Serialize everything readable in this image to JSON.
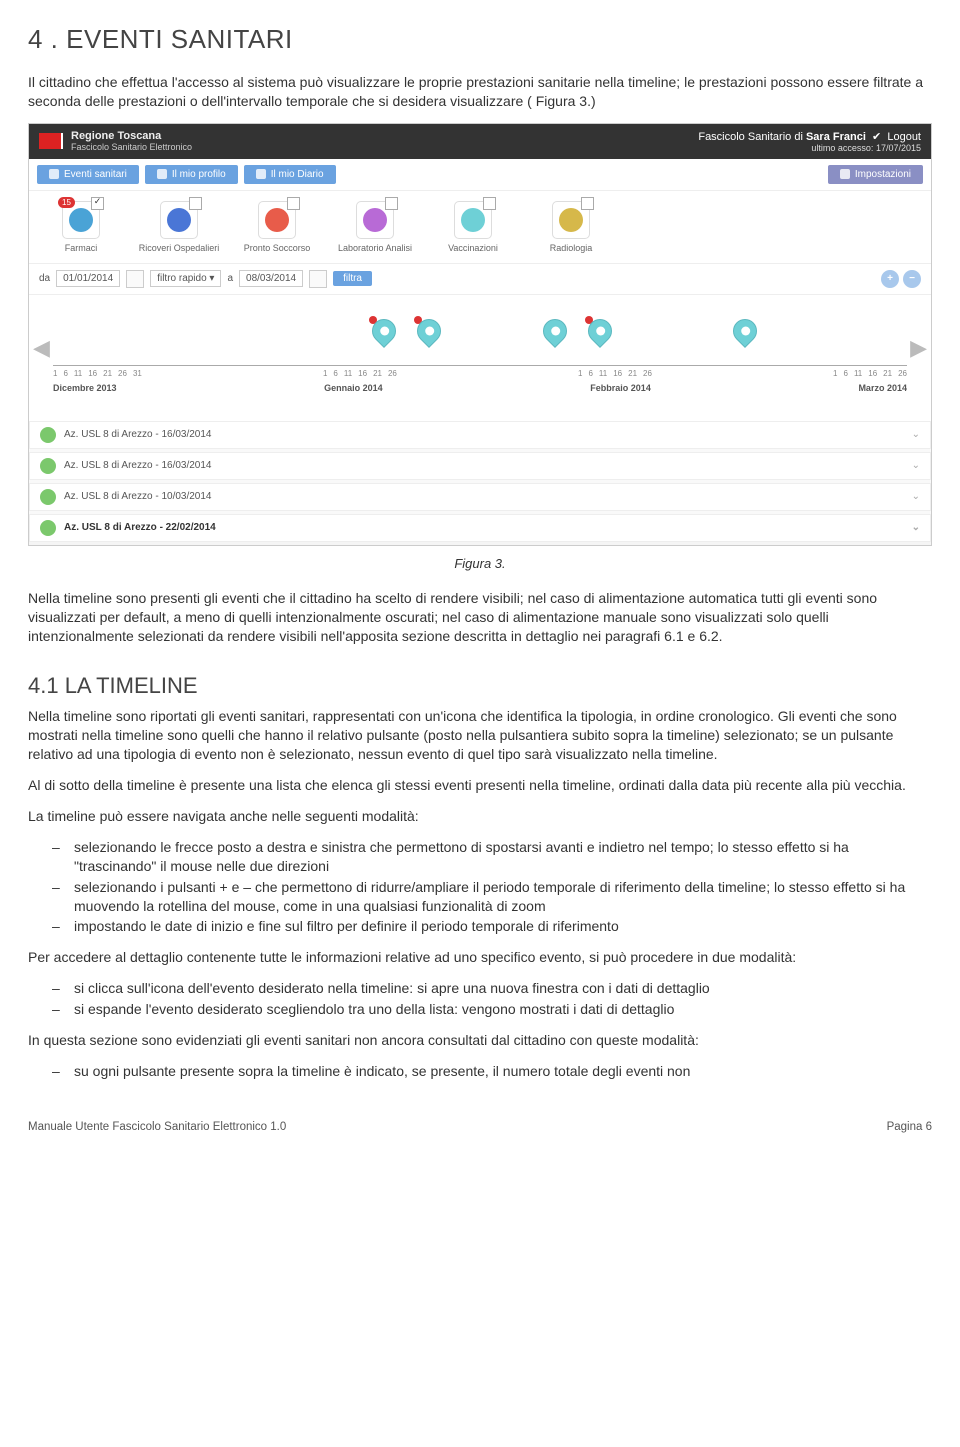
{
  "section": {
    "title": "4 . EVENTI SANITARI"
  },
  "intro": "Il cittadino che effettua l'accesso al sistema può visualizzare le proprie prestazioni sanitarie nella timeline; le prestazioni possono essere filtrate a seconda delle prestazioni o dell'intervallo temporale che si desidera visualizzare ( Figura 3.)",
  "screenshot": {
    "header": {
      "region": "Regione Toscana",
      "product": "Fascicolo Sanitario Elettronico",
      "fse_label": "Fascicolo Sanitario di",
      "user": "Sara Franci",
      "last_access_label": "ultimo accesso:",
      "last_access_date": "17/07/2015",
      "logout": "Logout"
    },
    "tabs": {
      "eventi": "Eventi sanitari",
      "profilo": "Il mio profilo",
      "diario": "Il mio Diario",
      "impostazioni": "Impostazioni"
    },
    "filters": [
      {
        "label": "Farmaci",
        "color": "#4aa3d6",
        "badge": "15",
        "checked": true
      },
      {
        "label": "Ricoveri Ospedalieri",
        "color": "#4a76d6",
        "checked": false
      },
      {
        "label": "Pronto Soccorso",
        "color": "#e85c4a",
        "checked": false
      },
      {
        "label": "Laboratorio Analisi",
        "color": "#b86ad6",
        "checked": false
      },
      {
        "label": "Vaccinazioni",
        "color": "#6ed0d6",
        "checked": false
      },
      {
        "label": "Radiologia",
        "color": "#d6b84a",
        "checked": false
      }
    ],
    "datebar": {
      "da": "da",
      "date_from": "01/01/2014",
      "filtro_rapido": "filtro rapido",
      "a": "a",
      "date_to": "08/03/2014",
      "filtra": "filtra"
    },
    "timeline": {
      "months": [
        "Dicembre 2013",
        "Gennaio 2014",
        "Febbraio 2014",
        "Marzo 2014"
      ],
      "ticks": [
        "1",
        "6",
        "11",
        "16",
        "21",
        "26",
        "31"
      ],
      "markers": [
        {
          "left_pct": 38,
          "new": true
        },
        {
          "left_pct": 43,
          "new": true
        },
        {
          "left_pct": 57,
          "new": false
        },
        {
          "left_pct": 62,
          "new": true
        },
        {
          "left_pct": 78,
          "new": false
        }
      ]
    },
    "events": [
      {
        "text": "Az. USL 8 di Arezzo - 16/03/2014",
        "bold": false
      },
      {
        "text": "Az. USL 8 di Arezzo - 16/03/2014",
        "bold": false
      },
      {
        "text": "Az. USL 8 di Arezzo - 10/03/2014",
        "bold": false
      },
      {
        "text": "Az. USL 8 di Arezzo - 22/02/2014",
        "bold": true
      }
    ]
  },
  "fig_caption": "Figura 3.",
  "para2": "Nella timeline sono presenti gli eventi che il cittadino ha scelto di rendere visibili; nel caso di alimentazione automatica tutti gli eventi sono visualizzati per default, a meno di quelli intenzionalmente oscurati; nel caso di alimentazione manuale sono visualizzati solo quelli intenzionalmente selezionati  da rendere visibili nell'apposita sezione descritta in dettaglio nei paragrafi 6.1 e 6.2.",
  "subsection": {
    "title": "4.1 LA TIMELINE"
  },
  "para3": "Nella timeline sono riportati gli eventi sanitari, rappresentati con un'icona che identifica la tipologia, in ordine cronologico. Gli eventi che sono mostrati nella timeline sono quelli che hanno il relativo pulsante (posto nella pulsantiera subito sopra la timeline) selezionato; se un pulsante relativo ad una tipologia di evento non è selezionato, nessun evento di quel tipo sarà visualizzato nella timeline.",
  "para3b": "Al di sotto della timeline è presente una lista che elenca gli stessi eventi presenti nella timeline, ordinati dalla data più recente alla più vecchia.",
  "nav_intro": "La timeline può essere navigata anche nelle seguenti modalità:",
  "nav_items": [
    "selezionando le frecce posto a destra e sinistra che permettono di spostarsi avanti e indietro nel tempo; lo stesso effetto si ha \"trascinando\" il mouse nelle due direzioni",
    "selezionando i pulsanti + e – che permettono di ridurre/ampliare il periodo temporale di riferimento della timeline; lo stesso effetto si ha muovendo la rotellina del mouse, come in una qualsiasi funzionalità di zoom",
    "impostando le date di inizio e fine sul filtro per definire il periodo temporale di riferimento"
  ],
  "access_intro": "Per accedere al dettaglio contenente tutte le informazioni relative ad uno specifico evento, si può procedere in due modalità:",
  "access_items": [
    "si clicca sull'icona dell'evento desiderato nella timeline: si apre una nuova finestra con i dati di dettaglio",
    "si espande l'evento desiderato scegliendolo tra uno della lista: vengono mostrati i dati di dettaglio"
  ],
  "highlight_intro": "In questa sezione sono evidenziati gli eventi sanitari non ancora consultati dal cittadino con queste modalità:",
  "highlight_items": [
    "su ogni pulsante presente sopra la timeline è indicato, se presente, il numero totale degli eventi non"
  ],
  "footer": {
    "left": "Manuale Utente Fascicolo Sanitario Elettronico 1.0",
    "right": "Pagina 6"
  }
}
